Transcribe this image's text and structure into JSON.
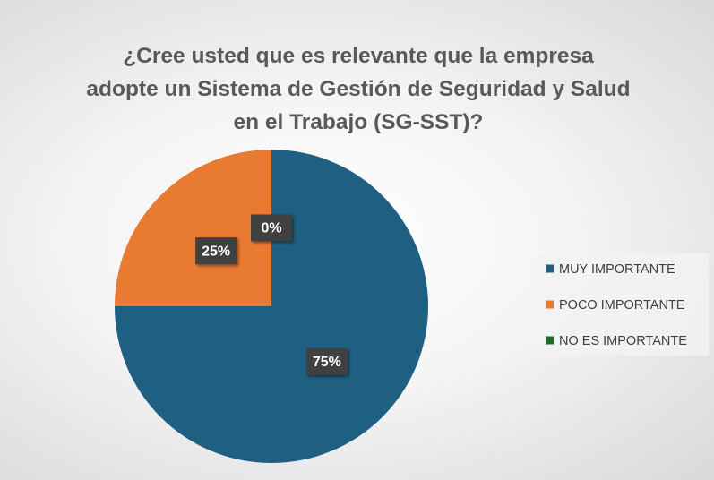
{
  "chart_data": {
    "type": "pie",
    "title": "¿Cree usted que es relevante que la empresa adopte un Sistema de Gestión de Seguridad y Salud en el Trabajo (SG-SST)?",
    "categories": [
      "MUY IMPORTANTE",
      "POCO IMPORTANTE",
      "NO ES IMPORTANTE"
    ],
    "values": [
      75,
      25,
      0
    ],
    "value_labels": [
      "75%",
      "25%",
      "0%"
    ],
    "colors": [
      "#1f5f82",
      "#e97a31",
      "#1e6b2c"
    ],
    "legend": "right"
  }
}
